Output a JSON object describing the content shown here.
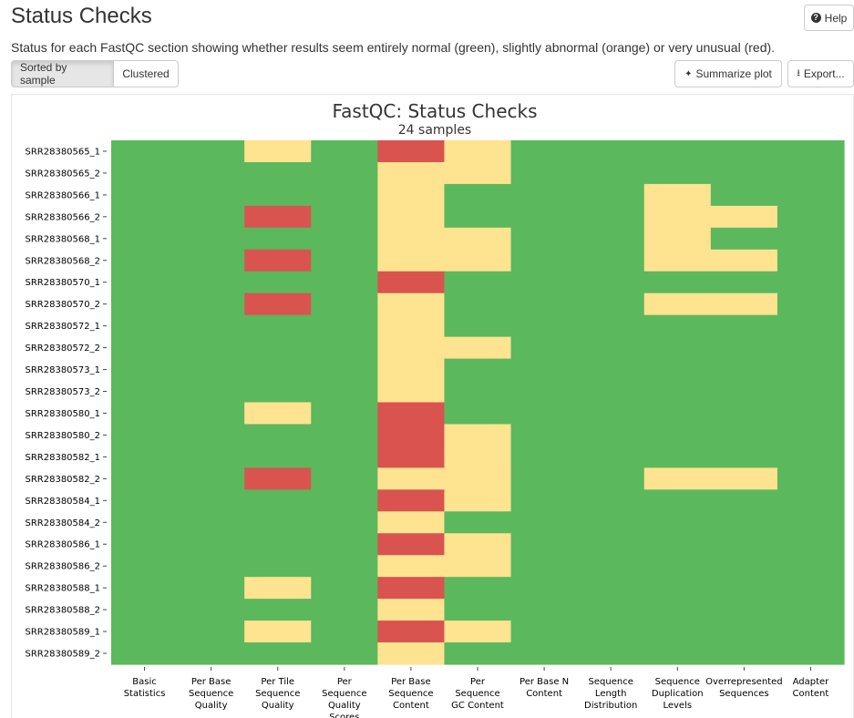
{
  "page": {
    "title": "Status Checks",
    "help_label": "Help",
    "description": "Status for each FastQC section showing whether results seem entirely normal (green), slightly abnormal (orange) or very unusual (red).",
    "sort_buttons": [
      "Sorted by sample",
      "Clustered"
    ],
    "summarize_label": "Summarize plot",
    "export_label": "Export..."
  },
  "colors": {
    "pass": "#5cb85c",
    "warn": "#fee391",
    "fail": "#d9534f"
  },
  "icons": {
    "help": "question-circle-icon",
    "summarize": "sparkle-icon",
    "export": "download-icon"
  },
  "chart_data": {
    "type": "heatmap",
    "title": "FastQC: Status Checks",
    "subtitle": "24 samples",
    "columns": [
      [
        "Basic",
        "Statistics"
      ],
      [
        "Per Base",
        "Sequence",
        "Quality"
      ],
      [
        "Per Tile",
        "Sequence",
        "Quality"
      ],
      [
        "Per",
        "Sequence",
        "Quality",
        "Scores"
      ],
      [
        "Per Base",
        "Sequence",
        "Content"
      ],
      [
        "Per",
        "Sequence",
        "GC Content"
      ],
      [
        "Per Base N",
        "Content"
      ],
      [
        "Sequence",
        "Length",
        "Distribution"
      ],
      [
        "Sequence",
        "Duplication",
        "Levels"
      ],
      [
        "Overrepresented",
        "Sequences"
      ],
      [
        "Adapter",
        "Content"
      ]
    ],
    "rows": [
      "SRR28380565_1",
      "SRR28380565_2",
      "SRR28380566_1",
      "SRR28380566_2",
      "SRR28380568_1",
      "SRR28380568_2",
      "SRR28380570_1",
      "SRR28380570_2",
      "SRR28380572_1",
      "SRR28380572_2",
      "SRR28380573_1",
      "SRR28380573_2",
      "SRR28380580_1",
      "SRR28380580_2",
      "SRR28380582_1",
      "SRR28380582_2",
      "SRR28380584_1",
      "SRR28380584_2",
      "SRR28380586_1",
      "SRR28380586_2",
      "SRR28380588_1",
      "SRR28380588_2",
      "SRR28380589_1",
      "SRR28380589_2"
    ],
    "status_scale": {
      "pass": 1,
      "warn": 0.5,
      "fail": 0.25
    },
    "values": [
      [
        "pass",
        "pass",
        "warn",
        "pass",
        "fail",
        "warn",
        "pass",
        "pass",
        "pass",
        "pass",
        "pass"
      ],
      [
        "pass",
        "pass",
        "pass",
        "pass",
        "warn",
        "warn",
        "pass",
        "pass",
        "pass",
        "pass",
        "pass"
      ],
      [
        "pass",
        "pass",
        "pass",
        "pass",
        "warn",
        "pass",
        "pass",
        "pass",
        "warn",
        "pass",
        "pass"
      ],
      [
        "pass",
        "pass",
        "fail",
        "pass",
        "warn",
        "pass",
        "pass",
        "pass",
        "warn",
        "warn",
        "pass"
      ],
      [
        "pass",
        "pass",
        "pass",
        "pass",
        "warn",
        "warn",
        "pass",
        "pass",
        "warn",
        "pass",
        "pass"
      ],
      [
        "pass",
        "pass",
        "fail",
        "pass",
        "warn",
        "warn",
        "pass",
        "pass",
        "warn",
        "warn",
        "pass"
      ],
      [
        "pass",
        "pass",
        "pass",
        "pass",
        "fail",
        "pass",
        "pass",
        "pass",
        "pass",
        "pass",
        "pass"
      ],
      [
        "pass",
        "pass",
        "fail",
        "pass",
        "warn",
        "pass",
        "pass",
        "pass",
        "warn",
        "warn",
        "pass"
      ],
      [
        "pass",
        "pass",
        "pass",
        "pass",
        "warn",
        "pass",
        "pass",
        "pass",
        "pass",
        "pass",
        "pass"
      ],
      [
        "pass",
        "pass",
        "pass",
        "pass",
        "warn",
        "warn",
        "pass",
        "pass",
        "pass",
        "pass",
        "pass"
      ],
      [
        "pass",
        "pass",
        "pass",
        "pass",
        "warn",
        "pass",
        "pass",
        "pass",
        "pass",
        "pass",
        "pass"
      ],
      [
        "pass",
        "pass",
        "pass",
        "pass",
        "warn",
        "pass",
        "pass",
        "pass",
        "pass",
        "pass",
        "pass"
      ],
      [
        "pass",
        "pass",
        "warn",
        "pass",
        "fail",
        "pass",
        "pass",
        "pass",
        "pass",
        "pass",
        "pass"
      ],
      [
        "pass",
        "pass",
        "pass",
        "pass",
        "fail",
        "warn",
        "pass",
        "pass",
        "pass",
        "pass",
        "pass"
      ],
      [
        "pass",
        "pass",
        "pass",
        "pass",
        "fail",
        "warn",
        "pass",
        "pass",
        "pass",
        "pass",
        "pass"
      ],
      [
        "pass",
        "pass",
        "fail",
        "pass",
        "warn",
        "warn",
        "pass",
        "pass",
        "warn",
        "warn",
        "pass"
      ],
      [
        "pass",
        "pass",
        "pass",
        "pass",
        "fail",
        "warn",
        "pass",
        "pass",
        "pass",
        "pass",
        "pass"
      ],
      [
        "pass",
        "pass",
        "pass",
        "pass",
        "warn",
        "pass",
        "pass",
        "pass",
        "pass",
        "pass",
        "pass"
      ],
      [
        "pass",
        "pass",
        "pass",
        "pass",
        "fail",
        "warn",
        "pass",
        "pass",
        "pass",
        "pass",
        "pass"
      ],
      [
        "pass",
        "pass",
        "pass",
        "pass",
        "warn",
        "warn",
        "pass",
        "pass",
        "pass",
        "pass",
        "pass"
      ],
      [
        "pass",
        "pass",
        "warn",
        "pass",
        "fail",
        "pass",
        "pass",
        "pass",
        "pass",
        "pass",
        "pass"
      ],
      [
        "pass",
        "pass",
        "pass",
        "pass",
        "warn",
        "pass",
        "pass",
        "pass",
        "pass",
        "pass",
        "pass"
      ],
      [
        "pass",
        "pass",
        "warn",
        "pass",
        "fail",
        "warn",
        "pass",
        "pass",
        "pass",
        "pass",
        "pass"
      ],
      [
        "pass",
        "pass",
        "pass",
        "pass",
        "warn",
        "pass",
        "pass",
        "pass",
        "pass",
        "pass",
        "pass"
      ]
    ]
  }
}
